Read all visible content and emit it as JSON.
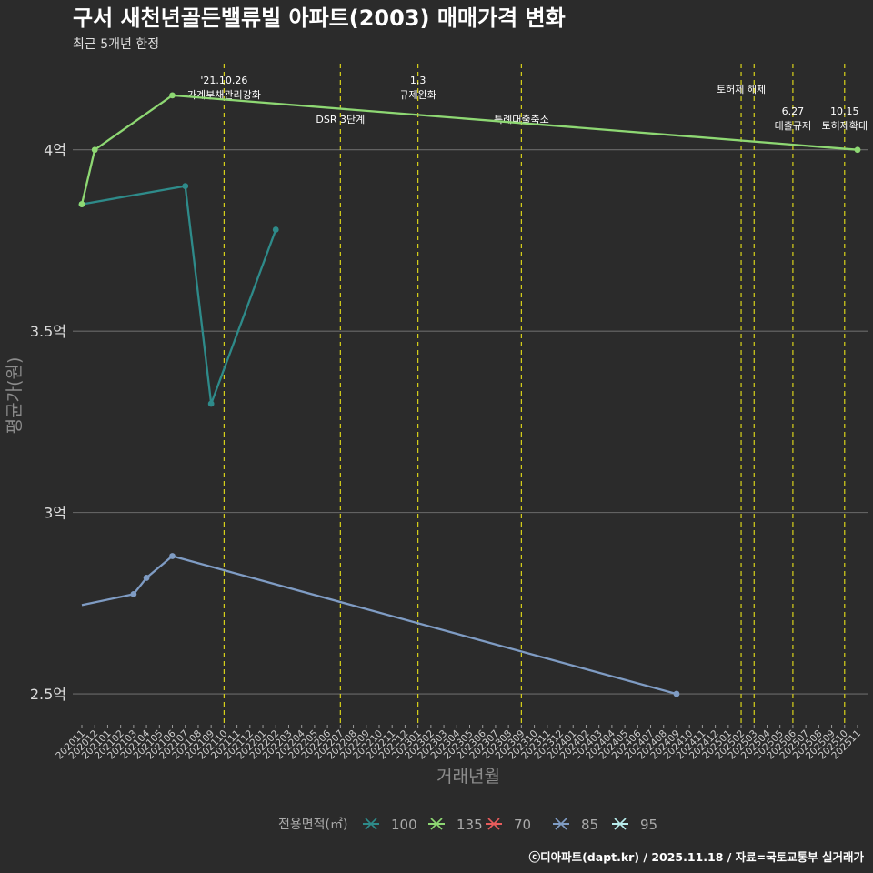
{
  "chart_data": {
    "type": "line",
    "title": "구서 새천년골든밸류빌 아파트(2003) 매매가격 변화",
    "subtitle": "최근 5개년 한정",
    "xlabel": "거래년월",
    "ylabel": "평균가(원)",
    "ylim": [
      2.42,
      4.25
    ],
    "yticks": [
      {
        "value": 2.5,
        "label": "2.5억"
      },
      {
        "value": 3.0,
        "label": "3억"
      },
      {
        "value": 3.5,
        "label": "3.5억"
      },
      {
        "value": 4.0,
        "label": "4억"
      }
    ],
    "x_categories": [
      "202011",
      "202012",
      "202101",
      "202102",
      "202103",
      "202104",
      "202105",
      "202106",
      "202107",
      "202108",
      "202109",
      "202110",
      "202111",
      "202112",
      "202201",
      "202202",
      "202203",
      "202204",
      "202205",
      "202206",
      "202207",
      "202208",
      "202209",
      "202210",
      "202211",
      "202212",
      "202301",
      "202302",
      "202303",
      "202304",
      "202305",
      "202306",
      "202307",
      "202308",
      "202309",
      "202310",
      "202311",
      "202312",
      "202401",
      "202402",
      "202403",
      "202404",
      "202405",
      "202406",
      "202407",
      "202408",
      "202409",
      "202410",
      "202411",
      "202412",
      "202501",
      "202502",
      "202503",
      "202504",
      "202505",
      "202506",
      "202507",
      "202508",
      "202509",
      "202510",
      "202511"
    ],
    "legend": {
      "title": "전용면적(㎡)",
      "position": "bottom",
      "entries": [
        {
          "name": "100",
          "color": "#2e8b8a"
        },
        {
          "name": "135",
          "color": "#8ed873"
        },
        {
          "name": "70",
          "color": "#e85c5c"
        },
        {
          "name": "85",
          "color": "#7f9cc4"
        },
        {
          "name": "95",
          "color": "#b8ecec"
        }
      ]
    },
    "series": [
      {
        "name": "100",
        "color": "#2e8b8a",
        "points": [
          {
            "x": "202011",
            "y": 3.85,
            "marker": true
          },
          {
            "x": "202107",
            "y": 3.9,
            "marker": true
          },
          {
            "x": "202109",
            "y": 3.3,
            "marker": true
          },
          {
            "x": "202202",
            "y": 3.78,
            "marker": true
          }
        ]
      },
      {
        "name": "135",
        "color": "#8ed873",
        "points": [
          {
            "x": "202011",
            "y": 3.85,
            "marker": true
          },
          {
            "x": "202012",
            "y": 4.0,
            "marker": true
          },
          {
            "x": "202106",
            "y": 4.15,
            "marker": true
          },
          {
            "x": "202511",
            "y": 4.0,
            "marker": true
          }
        ]
      },
      {
        "name": "85",
        "color": "#7f9cc4",
        "points": [
          {
            "x": "202011",
            "y": 2.745,
            "marker": false
          },
          {
            "x": "202103",
            "y": 2.775,
            "marker": true
          },
          {
            "x": "202104",
            "y": 2.82,
            "marker": true
          },
          {
            "x": "202106",
            "y": 2.88,
            "marker": true
          },
          {
            "x": "202409",
            "y": 2.5,
            "marker": true
          }
        ]
      }
    ],
    "events": [
      {
        "x": "202110",
        "lines": [
          "'21.10.26",
          "가계부채관리강화"
        ],
        "row": 0
      },
      {
        "x": "202207",
        "lines": [
          "DSR 3단계"
        ],
        "row": 2
      },
      {
        "x": "202301",
        "lines": [
          "1.3",
          "규제완화"
        ],
        "row": 0
      },
      {
        "x": "202309",
        "lines": [
          "특례대출축소"
        ],
        "row": 2
      },
      {
        "x": "202502",
        "lines": [
          "토허제 해제"
        ],
        "row": 1
      },
      {
        "x": "202503",
        "lines": [],
        "row": 1
      },
      {
        "x": "202506",
        "lines": [
          "6.27",
          "대출규제"
        ],
        "row": 3
      },
      {
        "x": "202510",
        "lines": [
          "10.15",
          "토허제확대"
        ],
        "row": 3
      }
    ],
    "caption": "ⓒ디아파트(dapt.kr) / 2025.11.18 / 자료=국토교통부 실거래가"
  }
}
